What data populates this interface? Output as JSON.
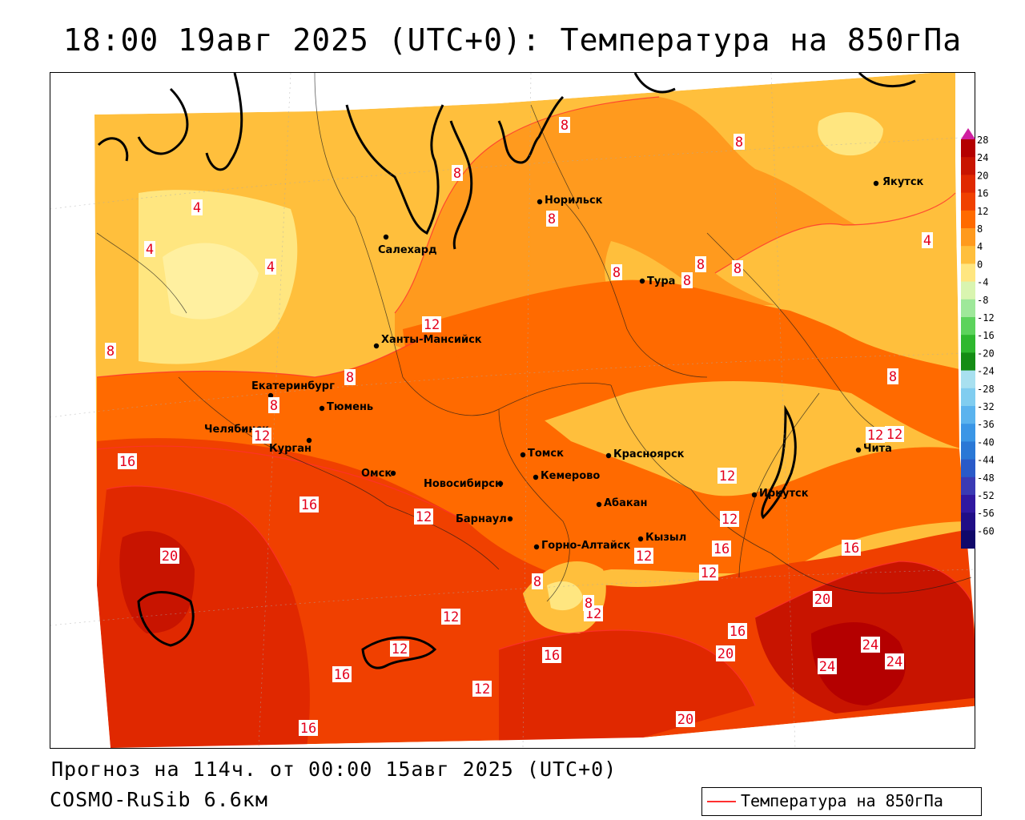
{
  "title": "18:00 19авг 2025 (UTC+0): Температура на 850гПа",
  "footer": {
    "forecast": "Прогноз на 114ч. от 00:00 15авг 2025 (UTC+0)",
    "model": "COSMO-RuSib 6.6км"
  },
  "legend": {
    "label": "Температура на 850гПа",
    "line_color": "#ff3030"
  },
  "color_scale": {
    "labels": [
      "28",
      "24",
      "20",
      "16",
      "12",
      "8",
      "4",
      "0",
      "-4",
      "-8",
      "-12",
      "-16",
      "-20",
      "-24",
      "-28",
      "-32",
      "-36",
      "-40",
      "-44",
      "-48",
      "-52",
      "-56",
      "-60"
    ],
    "colors": [
      "#b40000",
      "#c81400",
      "#e02800",
      "#f04000",
      "#ff6a00",
      "#ff9a1e",
      "#ffbf3c",
      "#ffe680",
      "#d9f5b0",
      "#9ee89a",
      "#5cd35c",
      "#2eb82e",
      "#148c14",
      "#a8e0f0",
      "#80cdf0",
      "#5ab3ee",
      "#3a96e6",
      "#2a78d6",
      "#2a5ac8",
      "#3a3ab4",
      "#3018a0",
      "#200e86",
      "#10086a"
    ],
    "top_marker_color": "#d020a0"
  },
  "cities": [
    {
      "name": "Якутск"
    },
    {
      "name": "Норильск"
    },
    {
      "name": "Салехард"
    },
    {
      "name": "Тура"
    },
    {
      "name": "Ханты-Мансийск"
    },
    {
      "name": "Екатеринбург"
    },
    {
      "name": "Тюмень"
    },
    {
      "name": "Челябинск"
    },
    {
      "name": "Курган"
    },
    {
      "name": "Омск"
    },
    {
      "name": "Новосибирск"
    },
    {
      "name": "Томск"
    },
    {
      "name": "Кемерово"
    },
    {
      "name": "Красноярск"
    },
    {
      "name": "Барнаул"
    },
    {
      "name": "Абакан"
    },
    {
      "name": "Горно-Алтайск"
    },
    {
      "name": "Кызыл"
    },
    {
      "name": "Иркутск"
    },
    {
      "name": "Чита"
    }
  ],
  "isotherm_labels": [
    "8",
    "8",
    "8",
    "8",
    "4",
    "4",
    "4",
    "8",
    "8",
    "8",
    "8",
    "8",
    "8",
    "4",
    "12",
    "8",
    "8",
    "8",
    "12",
    "12",
    "16",
    "16",
    "12",
    "12",
    "12",
    "20",
    "16",
    "12",
    "16",
    "12",
    "12",
    "12",
    "16",
    "20",
    "24",
    "20",
    "24",
    "24",
    "16",
    "12",
    "16",
    "20",
    "16",
    "12",
    "8",
    "8",
    "12"
  ]
}
